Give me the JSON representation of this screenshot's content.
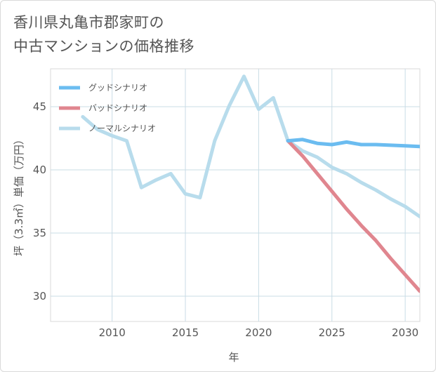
{
  "title_lines": [
    "香川県丸亀市郡家町の",
    "中古マンションの価格推移"
  ],
  "chart_data": {
    "type": "line",
    "title": "香川県丸亀市郡家町の中古マンションの価格推移",
    "xlabel": "年",
    "ylabel": "坪（3.3㎡）単価（万円）",
    "xlim": [
      2005.8,
      2031
    ],
    "ylim": [
      28,
      48
    ],
    "x_ticks": [
      2010,
      2015,
      2020,
      2025,
      2030
    ],
    "y_ticks": [
      30,
      35,
      40,
      45
    ],
    "grid": true,
    "legend_position": "top-left",
    "series": [
      {
        "name": "グッドシナリオ",
        "color": "#6bbcf0",
        "x": [
          2022,
          2023,
          2024,
          2025,
          2026,
          2027,
          2028,
          2029,
          2030,
          2031
        ],
        "y": [
          42.3,
          42.4,
          42.1,
          42.0,
          42.2,
          42.0,
          42.0,
          41.95,
          41.9,
          41.85
        ]
      },
      {
        "name": "バッドシナリオ",
        "color": "#e0868f",
        "x": [
          2022,
          2023,
          2024,
          2025,
          2026,
          2027,
          2028,
          2029,
          2030,
          2031
        ],
        "y": [
          42.3,
          41.1,
          39.7,
          38.3,
          36.9,
          35.6,
          34.4,
          33.0,
          31.7,
          30.4
        ]
      },
      {
        "name": "ノーマルシナリオ",
        "color": "#b8dcec",
        "x": [
          2008,
          2009,
          2010,
          2011,
          2012,
          2013,
          2014,
          2015,
          2016,
          2017,
          2018,
          2019,
          2020,
          2021,
          2022,
          2023,
          2024,
          2025,
          2026,
          2027,
          2028,
          2029,
          2030,
          2031
        ],
        "y": [
          44.2,
          43.2,
          42.7,
          42.3,
          38.6,
          39.2,
          39.7,
          38.1,
          37.8,
          42.3,
          45.1,
          47.4,
          44.8,
          45.7,
          42.3,
          41.5,
          41.0,
          40.2,
          39.7,
          39.0,
          38.4,
          37.7,
          37.1,
          36.3
        ]
      }
    ]
  }
}
